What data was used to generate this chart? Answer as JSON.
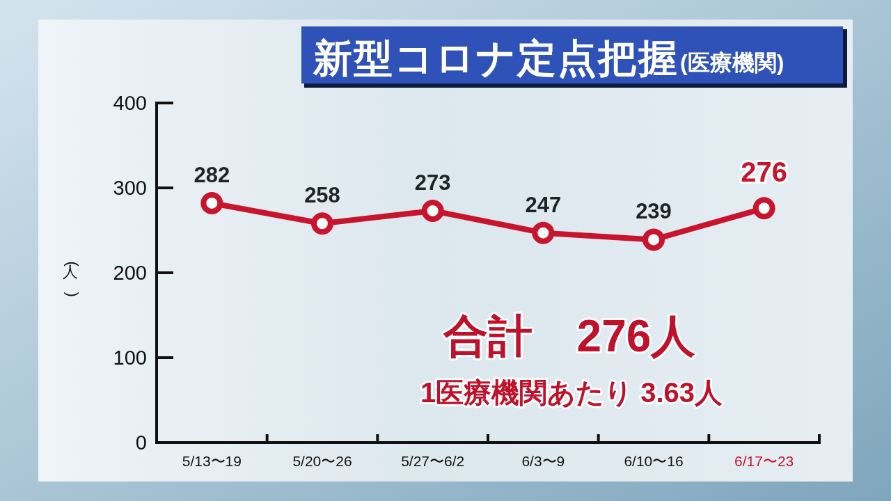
{
  "chart_data": {
    "type": "line",
    "title": "新型コロナ定点把握",
    "subtitle": "(医療機関)",
    "ylabel": "(人)",
    "categories": [
      "5/13〜19",
      "5/20〜26",
      "5/27〜6/2",
      "6/3〜9",
      "6/10〜16",
      "6/17〜23"
    ],
    "series": [
      {
        "color": "#c8142c",
        "values": [
          282,
          258,
          273,
          247,
          239,
          276
        ]
      }
    ],
    "ylim": [
      0,
      400
    ],
    "yticks": [
      0,
      100,
      200,
      300,
      400
    ],
    "data_labels": true,
    "marker": "circle",
    "annotations": [
      "合計　276人",
      "1医療機関あたり 3.63人"
    ]
  }
}
